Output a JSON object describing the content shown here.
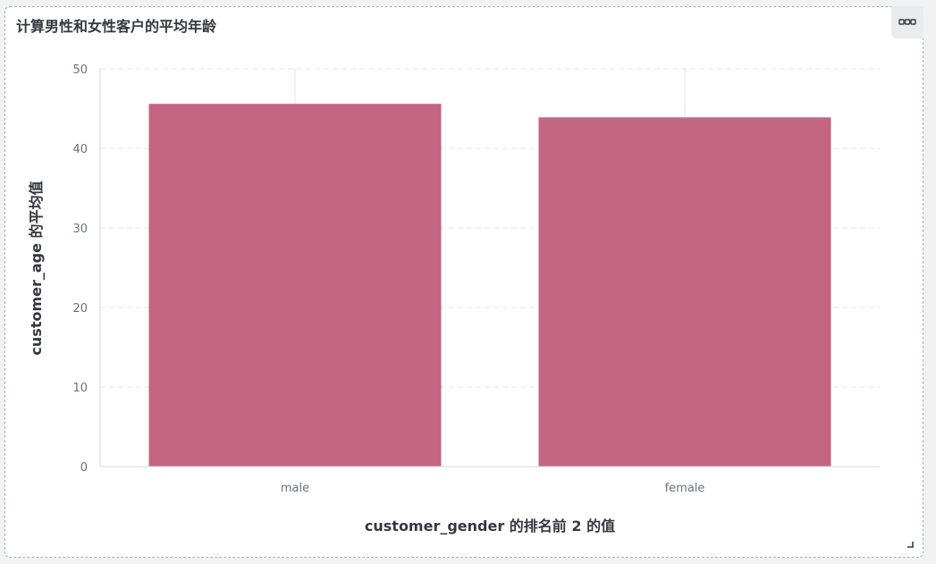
{
  "panel": {
    "title": "计算男性和女性客户的平均年龄",
    "options_icon": "ellipsis-icon",
    "resize_icon": "resize-corner-icon"
  },
  "colors": {
    "bar": "#c46681",
    "grid": "#e3e6ea",
    "axis": "#d3dae6",
    "text": "#343741",
    "tick": "#69707d"
  },
  "chart_data": {
    "type": "bar",
    "title": "",
    "xlabel": "customer_gender 的排名前 2 的值",
    "ylabel": "customer_age 的平均值",
    "categories": [
      "male",
      "female"
    ],
    "values": [
      45.6,
      43.9
    ],
    "ylim": [
      0,
      50
    ],
    "yticks": [
      0,
      10,
      20,
      30,
      40,
      50
    ],
    "yticks_labels": [
      "0",
      "10",
      "20",
      "30",
      "40",
      "50"
    ],
    "grid": true,
    "legend": "none"
  }
}
